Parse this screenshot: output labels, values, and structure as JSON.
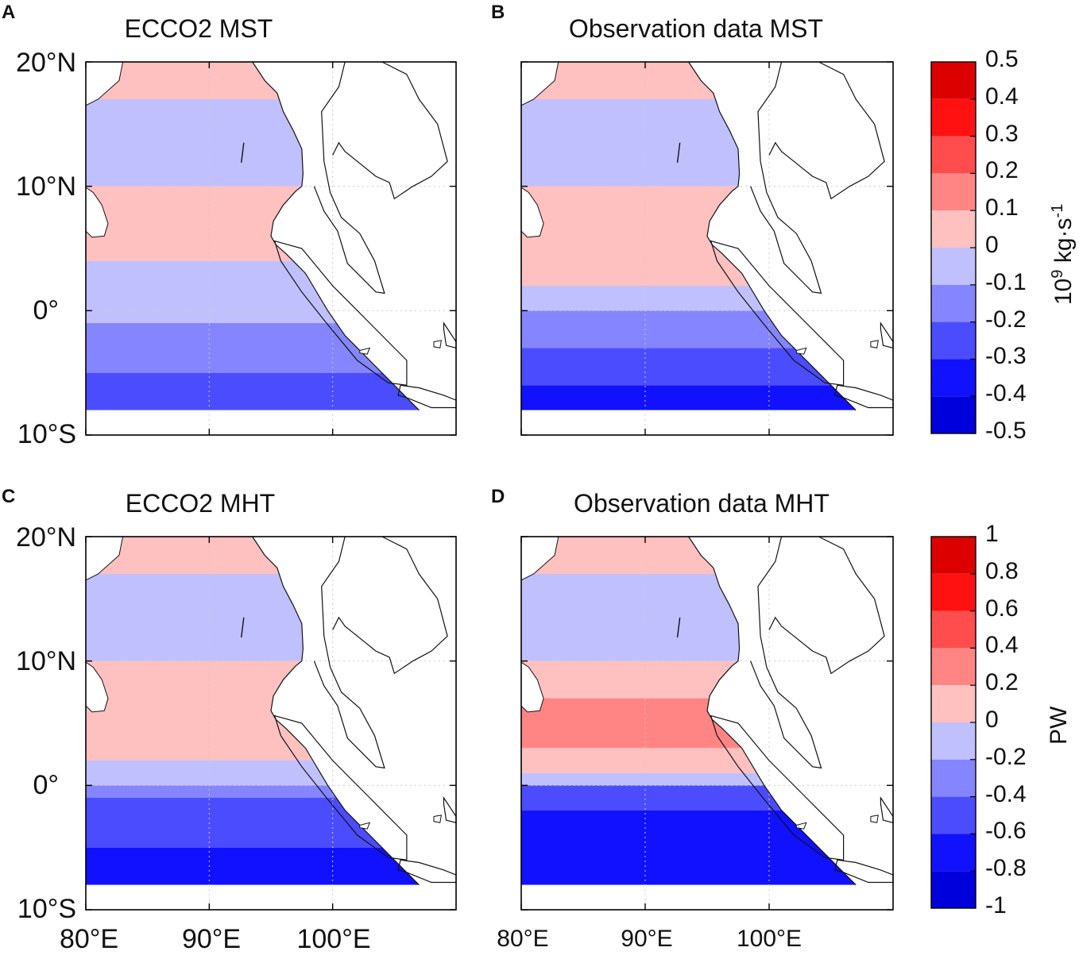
{
  "panels": [
    {
      "letter": "A",
      "title": "ECCO2 MST"
    },
    {
      "letter": "B",
      "title": "Observation data MST"
    },
    {
      "letter": "C",
      "title": "ECCO2 MHT"
    },
    {
      "letter": "D",
      "title": "Observation data MHT"
    }
  ],
  "lat_ticks": [
    "20°N",
    "10°N",
    "0°",
    "10°S"
  ],
  "lon_ticks": [
    "80°E",
    "90°E",
    "100°E"
  ],
  "colorbar_mst": {
    "label": "kg·s",
    "label_prefix": "10",
    "label_exp": "9",
    "label_suffix_exp": "-1",
    "ticks": [
      "0.5",
      "0.4",
      "0.3",
      "0.2",
      "0.1",
      "0",
      "-0.1",
      "-0.2",
      "-0.3",
      "-0.4",
      "-0.5"
    ]
  },
  "colorbar_mht": {
    "label": "PW",
    "ticks": [
      "1",
      "0.8",
      "0.6",
      "0.4",
      "0.2",
      "0",
      "-0.2",
      "-0.4",
      "-0.6",
      "-0.8",
      "-1"
    ]
  },
  "colors": {
    "levels": [
      "#dd0000",
      "#ff1111",
      "#ff4c4c",
      "#ff8585",
      "#ffc0c0",
      "#c0c0ff",
      "#8585ff",
      "#4c4cff",
      "#1111ff",
      "#0000dd"
    ],
    "coast": "#111111",
    "grid": "#cccccc"
  },
  "chart_data": [
    {
      "type": "heatmap",
      "title": "ECCO2 MST",
      "units": "10^9 kg·s^-1",
      "lon_range": [
        80,
        110
      ],
      "lat_range": [
        -10,
        20
      ],
      "bands_lat_by_level": [
        {
          "lat_band": [
            17,
            20
          ],
          "value": 0.05
        },
        {
          "lat_band": [
            10,
            17
          ],
          "value": -0.05
        },
        {
          "lat_band": [
            4,
            10
          ],
          "value": 0.05
        },
        {
          "lat_band": [
            -1,
            4
          ],
          "value": -0.05
        },
        {
          "lat_band": [
            -5,
            -1
          ],
          "value": -0.15
        },
        {
          "lat_band": [
            -8,
            -5
          ],
          "value": -0.25
        }
      ]
    },
    {
      "type": "heatmap",
      "title": "Observation data MST",
      "units": "10^9 kg·s^-1",
      "lon_range": [
        80,
        110
      ],
      "lat_range": [
        -10,
        20
      ],
      "bands_lat_by_level": [
        {
          "lat_band": [
            17,
            20
          ],
          "value": 0.05
        },
        {
          "lat_band": [
            10,
            17
          ],
          "value": -0.05
        },
        {
          "lat_band": [
            2,
            10
          ],
          "value": 0.05
        },
        {
          "lat_band": [
            0,
            2
          ],
          "value": -0.05
        },
        {
          "lat_band": [
            -3,
            0
          ],
          "value": -0.15
        },
        {
          "lat_band": [
            -6,
            -3
          ],
          "value": -0.25
        },
        {
          "lat_band": [
            -8,
            -6
          ],
          "value": -0.35
        }
      ]
    },
    {
      "type": "heatmap",
      "title": "ECCO2 MHT",
      "units": "PW",
      "lon_range": [
        80,
        110
      ],
      "lat_range": [
        -10,
        20
      ],
      "bands_lat_by_level": [
        {
          "lat_band": [
            17,
            20
          ],
          "value": 0.1
        },
        {
          "lat_band": [
            10,
            17
          ],
          "value": -0.1
        },
        {
          "lat_band": [
            2,
            10
          ],
          "value": 0.1
        },
        {
          "lat_band": [
            0,
            2
          ],
          "value": -0.1
        },
        {
          "lat_band": [
            -1,
            0
          ],
          "value": -0.3
        },
        {
          "lat_band": [
            -5,
            -1
          ],
          "value": -0.5
        },
        {
          "lat_band": [
            -8,
            -5
          ],
          "value": -0.7
        }
      ]
    },
    {
      "type": "heatmap",
      "title": "Observation data MHT",
      "units": "PW",
      "lon_range": [
        80,
        110
      ],
      "lat_range": [
        -10,
        20
      ],
      "bands_lat_by_level": [
        {
          "lat_band": [
            17,
            20
          ],
          "value": 0.1
        },
        {
          "lat_band": [
            10,
            17
          ],
          "value": -0.1
        },
        {
          "lat_band": [
            7,
            10
          ],
          "value": 0.1
        },
        {
          "lat_band": [
            3,
            7
          ],
          "value": 0.3
        },
        {
          "lat_band": [
            1,
            3
          ],
          "value": 0.1
        },
        {
          "lat_band": [
            0,
            1
          ],
          "value": -0.1
        },
        {
          "lat_band": [
            -2,
            0
          ],
          "value": -0.5
        },
        {
          "lat_band": [
            -8,
            -2
          ],
          "value": -0.7
        }
      ]
    }
  ]
}
